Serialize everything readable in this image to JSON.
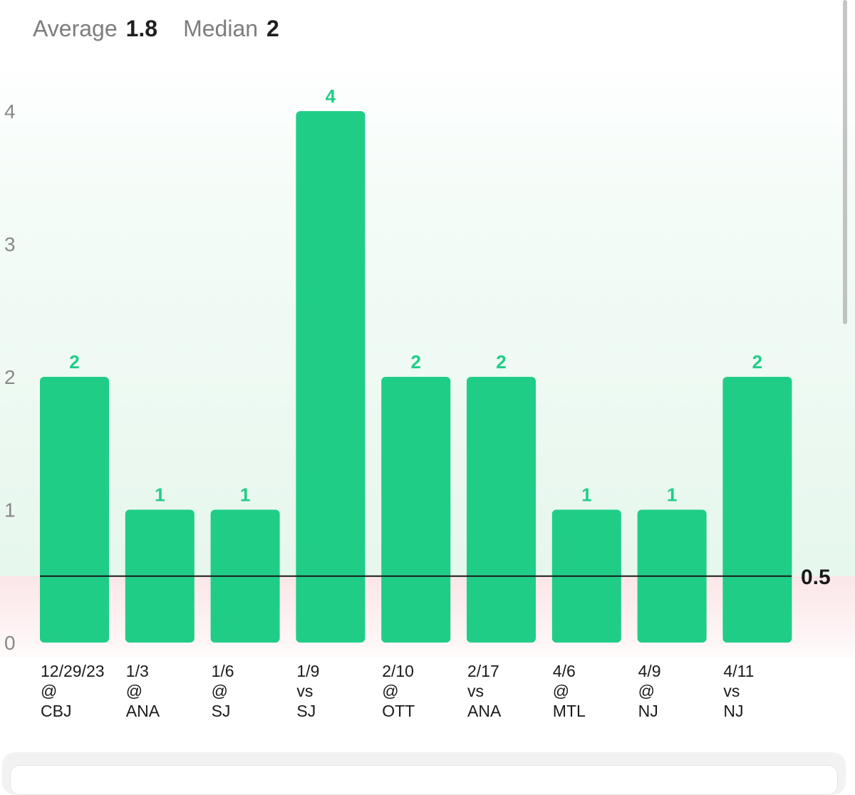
{
  "stats": {
    "average_label": "Average",
    "average_value": "1.8",
    "median_label": "Median",
    "median_value": "2"
  },
  "colors": {
    "bar": "#1fcd87",
    "value_label": "#1fcd87",
    "over_bg": "#e9f8ef",
    "under_bg": "#fbe9ea",
    "threshold_line": "#1a1a1a",
    "axis_tick": "#888888"
  },
  "chart_data": {
    "type": "bar",
    "categories": [
      [
        "12/29/23",
        "@",
        "CBJ"
      ],
      [
        "1/3",
        "@",
        "ANA"
      ],
      [
        "1/6",
        "@",
        "SJ"
      ],
      [
        "1/9",
        "vs",
        "SJ"
      ],
      [
        "2/10",
        "@",
        "OTT"
      ],
      [
        "2/17",
        "vs",
        "ANA"
      ],
      [
        "4/6",
        "@",
        "MTL"
      ],
      [
        "4/9",
        "@",
        "NJ"
      ],
      [
        "4/11",
        "vs",
        "NJ"
      ]
    ],
    "values": [
      2,
      1,
      1,
      4,
      2,
      2,
      1,
      1,
      2
    ],
    "yticks": [
      0,
      1,
      2,
      3,
      4
    ],
    "ylim": [
      0,
      4
    ],
    "threshold": 0.5,
    "threshold_label": "0.5",
    "grid": false,
    "title": "",
    "xlabel": "",
    "ylabel": ""
  }
}
